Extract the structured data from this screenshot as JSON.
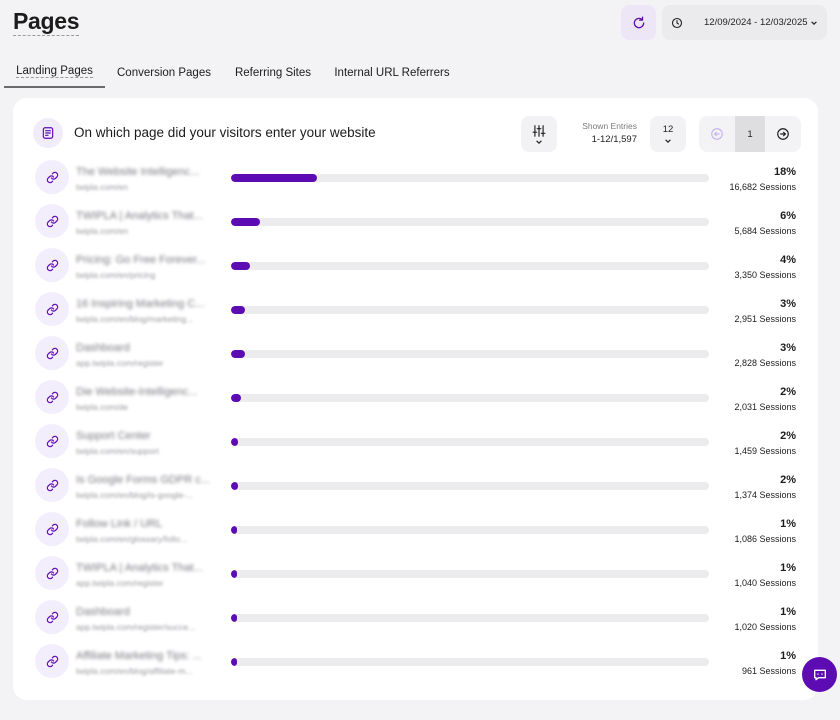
{
  "page": {
    "title": "Pages"
  },
  "header": {
    "date_range": "12/09/2024 - 12/03/2025"
  },
  "tabs": [
    {
      "label": "Landing Pages",
      "active": true
    },
    {
      "label": "Conversion Pages",
      "active": false
    },
    {
      "label": "Referring Sites",
      "active": false
    },
    {
      "label": "Internal URL Referrers",
      "active": false
    }
  ],
  "card": {
    "title": "On which page did your visitors enter your website",
    "entries_label": "Shown Entries",
    "entries_value": "1-12/1,597",
    "per_page": "12",
    "current_page": "1"
  },
  "colors": {
    "accent": "#5d0cb3",
    "accent_light": "#f3eefb",
    "track": "#ececef"
  },
  "icons": {
    "refresh": "refresh-icon",
    "clock": "clock-icon",
    "filter": "sliders-icon",
    "link": "link-icon",
    "prev": "arrow-left-icon",
    "next": "arrow-right-icon",
    "chat": "chat-icon"
  },
  "rows": [
    {
      "title": "The Website Intelligenc...",
      "url": "twipla.com/en",
      "percent": "18%",
      "sessions": "16,682 Sessions",
      "share": 0.18
    },
    {
      "title": "TWIPLA | Analytics That...",
      "url": "twipla.com/en",
      "percent": "6%",
      "sessions": "5,684 Sessions",
      "share": 0.06
    },
    {
      "title": "Pricing: Go Free Forever...",
      "url": "twipla.com/en/pricing",
      "percent": "4%",
      "sessions": "3,350 Sessions",
      "share": 0.04
    },
    {
      "title": "16 Inspiring Marketing C...",
      "url": "twipla.com/en/blog/marketing...",
      "percent": "3%",
      "sessions": "2,951 Sessions",
      "share": 0.03
    },
    {
      "title": "Dashboard",
      "url": "app.twipla.com/register",
      "percent": "3%",
      "sessions": "2,828 Sessions",
      "share": 0.03
    },
    {
      "title": "Die Website-Intelligenc...",
      "url": "twipla.com/de",
      "percent": "2%",
      "sessions": "2,031 Sessions",
      "share": 0.02
    },
    {
      "title": "Support Center",
      "url": "twipla.com/en/support",
      "percent": "2%",
      "sessions": "1,459 Sessions",
      "share": 0.015
    },
    {
      "title": "Is Google Forms GDPR c...",
      "url": "twipla.com/en/blog/is-google-...",
      "percent": "2%",
      "sessions": "1,374 Sessions",
      "share": 0.015
    },
    {
      "title": "Follow Link / URL",
      "url": "twipla.com/en/glossary/follo...",
      "percent": "1%",
      "sessions": "1,086 Sessions",
      "share": 0.007
    },
    {
      "title": "TWIPLA | Analytics That...",
      "url": "app.twipla.com/register",
      "percent": "1%",
      "sessions": "1,040 Sessions",
      "share": 0.007
    },
    {
      "title": "Dashboard",
      "url": "app.twipla.com/register/succe...",
      "percent": "1%",
      "sessions": "1,020 Sessions",
      "share": 0.007
    },
    {
      "title": "Affiliate Marketing Tips: ...",
      "url": "twipla.com/en/blog/affiliate-m...",
      "percent": "1%",
      "sessions": "961 Sessions",
      "share": 0.007
    }
  ]
}
